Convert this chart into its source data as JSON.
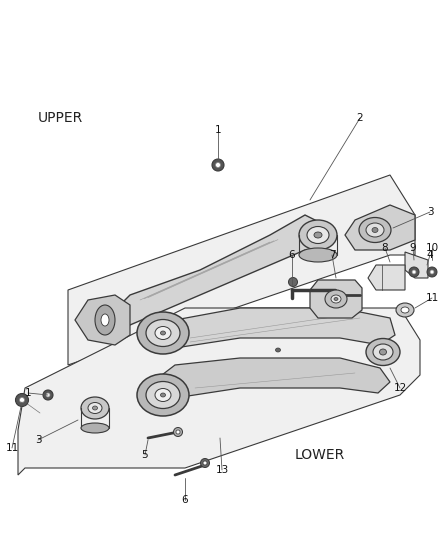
{
  "background_color": "#ffffff",
  "line_color": "#3a3a3a",
  "fill_light": "#f0f0f0",
  "fill_mid": "#e0e0e0",
  "fill_dark": "#c8c8c8",
  "fill_arm": "#d8d8d8",
  "fill_bushing": "#b8b8b8",
  "upper_label": "UPPER",
  "lower_label": "LOWER",
  "figsize": [
    4.38,
    5.33
  ],
  "dpi": 100
}
